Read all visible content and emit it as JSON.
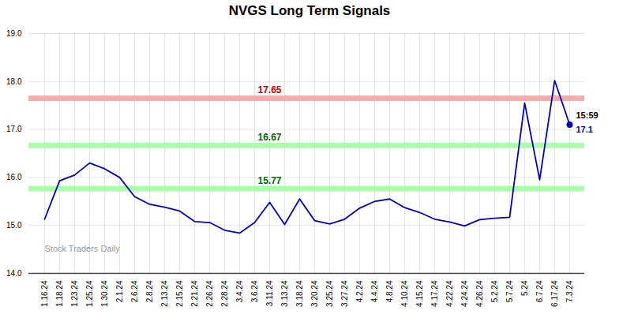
{
  "chart_data": {
    "type": "line",
    "title": "NVGS Long Term Signals",
    "categories": [
      "1.16.24",
      "1.18.24",
      "1.23.24",
      "1.25.24",
      "1.30.24",
      "2.1.24",
      "2.6.24",
      "2.8.24",
      "2.13.24",
      "2.15.24",
      "2.21.24",
      "2.26.24",
      "2.28.24",
      "3.4.24",
      "3.6.24",
      "3.11.24",
      "3.13.24",
      "3.18.24",
      "3.20.24",
      "3.25.24",
      "3.27.24",
      "4.2.24",
      "4.4.24",
      "4.8.24",
      "4.10.24",
      "4.15.24",
      "4.17.24",
      "4.22.24",
      "4.24.24",
      "4.26.24",
      "5.2.24",
      "5.7.24",
      "5.24",
      "6.7.24",
      "6.17.24",
      "7.3.24"
    ],
    "values": [
      15.13,
      15.93,
      16.05,
      16.3,
      16.18,
      16.0,
      15.6,
      15.44,
      15.38,
      15.3,
      15.08,
      15.06,
      14.9,
      14.84,
      15.06,
      15.48,
      15.02,
      15.55,
      15.1,
      15.03,
      15.13,
      15.36,
      15.5,
      15.55,
      15.37,
      15.27,
      15.13,
      15.07,
      14.99,
      15.12,
      15.15,
      15.17,
      17.55,
      15.95,
      18.02,
      17.1
    ],
    "color": "#0000cc",
    "ylim": [
      14,
      19
    ],
    "yticks": [
      14,
      15,
      16,
      17,
      18,
      19
    ],
    "grid": true,
    "reference_lines": [
      {
        "value": 17.65,
        "label": "17.65",
        "color": "#ffaaaa",
        "label_color": "#cc0000"
      },
      {
        "value": 16.67,
        "label": "16.67",
        "color": "#aaffaa",
        "label_color": "#006600"
      },
      {
        "value": 15.77,
        "label": "15.77",
        "color": "#aaffaa",
        "label_color": "#006600"
      }
    ],
    "last_point": {
      "color": "#0000bb",
      "annotations": [
        {
          "text": "15:59",
          "color": "#000000"
        },
        {
          "text": "17.1",
          "color": "#0000cc"
        }
      ]
    },
    "watermark": "Stock Traders Daily"
  }
}
